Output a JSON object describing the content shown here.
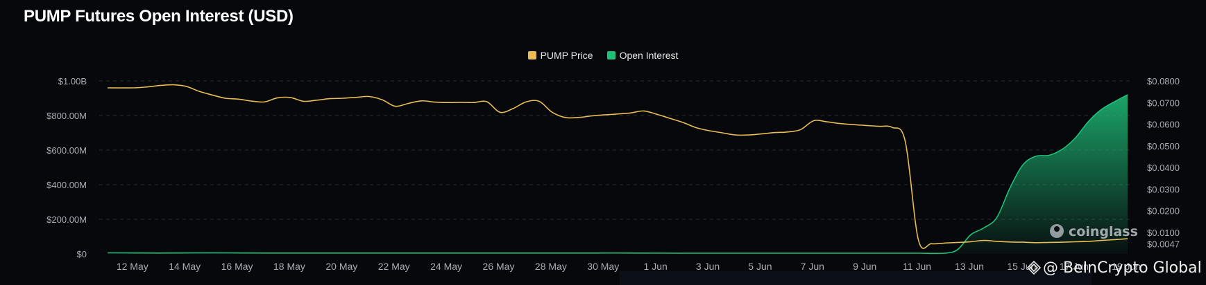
{
  "title": "PUMP Futures Open Interest (USD)",
  "legend": [
    {
      "label": "PUMP Price",
      "color": "#e9bd53"
    },
    {
      "label": "Open Interest",
      "color": "#1fc07a"
    }
  ],
  "watermarks": {
    "coinglass": "coinglass",
    "beincrypto": "@ BeInCrypto Global"
  },
  "chart_data": {
    "type": "line",
    "title": "PUMP Futures Open Interest (USD)",
    "x_ticks": [
      "12 May",
      "14 May",
      "16 May",
      "18 May",
      "20 May",
      "22 May",
      "24 May",
      "26 May",
      "28 May",
      "30 May",
      "1 Jun",
      "3 Jun",
      "5 Jun",
      "7 Jun",
      "9 Jun",
      "11 Jun",
      "13 Jun",
      "15 Jun",
      "17 Jun",
      "19 Jun"
    ],
    "y_left": {
      "ticks": [
        "$1.00B",
        "$800.00M",
        "$600.00M",
        "$400.00M",
        "$200.00M",
        "$0"
      ],
      "range": [
        0,
        1000000000
      ]
    },
    "y_right": {
      "ticks": [
        "$0.0800",
        "$0.0700",
        "$0.0600",
        "$0.0500",
        "$0.0400",
        "$0.0300",
        "$0.0200",
        "$0.0100",
        "$0.0047"
      ],
      "range": [
        0,
        0.08
      ]
    },
    "x_range": [
      0,
      39
    ],
    "series": [
      {
        "name": "PUMP Price",
        "axis": "right",
        "color": "#e9bd53",
        "x": [
          0,
          1,
          1.5,
          2,
          2.5,
          3,
          3.5,
          4,
          4.5,
          5,
          5.5,
          6,
          6.5,
          7,
          7.5,
          8,
          8.5,
          9,
          9.5,
          10,
          10.5,
          11,
          11.5,
          12,
          12.5,
          13,
          13.5,
          14,
          14.5,
          15,
          15.5,
          16,
          16.5,
          17,
          17.5,
          18,
          18.5,
          19,
          19.5,
          20,
          20.5,
          21,
          21.5,
          22,
          22.5,
          23,
          23.5,
          24,
          24.5,
          25,
          25.5,
          26,
          26.5,
          27,
          27.5,
          28,
          28.5,
          29,
          29.5,
          30,
          30.5,
          31,
          31.5,
          32,
          32.5,
          33,
          33.5,
          34,
          34.5,
          35,
          35.5,
          36,
          36.5,
          37,
          37.5,
          38,
          38.5,
          39
        ],
        "values": [
          0.0768,
          0.0768,
          0.0772,
          0.0779,
          0.0782,
          0.0775,
          0.0752,
          0.0735,
          0.072,
          0.0716,
          0.0707,
          0.0703,
          0.0722,
          0.0723,
          0.0706,
          0.0711,
          0.0718,
          0.072,
          0.0724,
          0.0728,
          0.0713,
          0.0683,
          0.0696,
          0.0708,
          0.0702,
          0.07,
          0.0701,
          0.07,
          0.0704,
          0.0655,
          0.0672,
          0.0703,
          0.0706,
          0.0655,
          0.0631,
          0.0631,
          0.0638,
          0.0643,
          0.0647,
          0.0652,
          0.0661,
          0.0646,
          0.0627,
          0.0608,
          0.0584,
          0.057,
          0.056,
          0.055,
          0.055,
          0.0555,
          0.0561,
          0.0564,
          0.0575,
          0.0616,
          0.0611,
          0.0603,
          0.0598,
          0.0594,
          0.059,
          0.0585,
          0.052,
          0.0065,
          0.0047,
          0.005,
          0.0053,
          0.0056,
          0.0062,
          0.0058,
          0.0055,
          0.0054,
          0.0052,
          0.0053,
          0.0054,
          0.0056,
          0.0058,
          0.0062,
          0.0066,
          0.007
        ]
      },
      {
        "name": "Open Interest",
        "axis": "left",
        "color": "#1fc07a",
        "x": [
          0,
          2,
          4,
          6,
          8,
          10,
          12,
          14,
          16,
          18,
          20,
          22,
          24,
          26,
          28,
          30,
          31,
          32,
          32.5,
          33,
          33.5,
          34,
          34.5,
          35,
          35.5,
          36,
          36.5,
          37,
          37.5,
          38,
          38.5,
          39
        ],
        "values": [
          6000000,
          5000000,
          6000000,
          5000000,
          5000000,
          5000000,
          5000000,
          5000000,
          5000000,
          5000000,
          5000000,
          4000000,
          4000000,
          4000000,
          4000000,
          4000000,
          4000000,
          4000000,
          25000000,
          110000000,
          150000000,
          210000000,
          380000000,
          515000000,
          565000000,
          570000000,
          605000000,
          670000000,
          765000000,
          835000000,
          880000000,
          920000000
        ]
      }
    ]
  }
}
